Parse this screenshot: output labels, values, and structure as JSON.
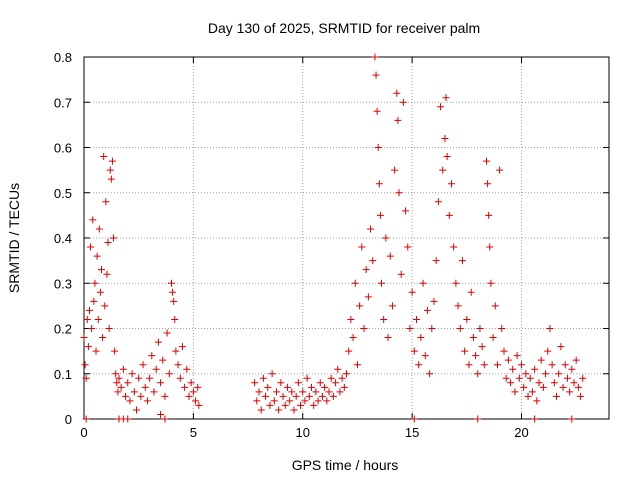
{
  "chart_data": {
    "type": "scatter",
    "title": "Day 130 of 2025, SRMTID for receiver palm",
    "xlabel": "GPS time / hours",
    "ylabel": "SRMTID / TECUs",
    "xlim": [
      0,
      24
    ],
    "ylim": [
      0,
      0.8
    ],
    "xticks": [
      0,
      5,
      10,
      15,
      20
    ],
    "yticks": [
      0,
      0.1,
      0.2,
      0.3,
      0.4,
      0.5,
      0.6,
      0.7,
      0.8
    ],
    "xtick_labels": [
      "0",
      "5",
      "10",
      "15",
      "20"
    ],
    "ytick_labels": [
      "0",
      "0.1",
      "0.2",
      "0.3",
      "0.4",
      "0.5",
      "0.6",
      "0.7",
      "0.8"
    ],
    "grid": true,
    "marker": "+",
    "color": "#e00000",
    "series": [
      {
        "name": "SRMTID",
        "points": [
          [
            0.0,
            0.18
          ],
          [
            0.05,
            0.12
          ],
          [
            0.1,
            0.09
          ],
          [
            0.15,
            0.22
          ],
          [
            0.2,
            0.16
          ],
          [
            0.25,
            0.24
          ],
          [
            0.3,
            0.38
          ],
          [
            0.35,
            0.2
          ],
          [
            0.4,
            0.44
          ],
          [
            0.45,
            0.26
          ],
          [
            0.5,
            0.3
          ],
          [
            0.55,
            0.15
          ],
          [
            0.6,
            0.36
          ],
          [
            0.65,
            0.22
          ],
          [
            0.7,
            0.42
          ],
          [
            0.75,
            0.28
          ],
          [
            0.8,
            0.33
          ],
          [
            0.85,
            0.18
          ],
          [
            0.9,
            0.58
          ],
          [
            0.95,
            0.25
          ],
          [
            1.0,
            0.48
          ],
          [
            1.05,
            0.32
          ],
          [
            1.1,
            0.39
          ],
          [
            1.15,
            0.2
          ],
          [
            1.2,
            0.55
          ],
          [
            1.25,
            0.53
          ],
          [
            1.3,
            0.57
          ],
          [
            1.35,
            0.4
          ],
          [
            1.4,
            0.15
          ],
          [
            1.45,
            0.1
          ],
          [
            1.5,
            0.08
          ],
          [
            1.55,
            0.06
          ],
          [
            1.6,
            0.09
          ],
          [
            1.7,
            0.07
          ],
          [
            1.8,
            0.11
          ],
          [
            1.9,
            0.05
          ],
          [
            2.0,
            0.08
          ],
          [
            2.1,
            0.04
          ],
          [
            2.2,
            0.1
          ],
          [
            2.3,
            0.06
          ],
          [
            1.6,
            0.0
          ],
          [
            1.8,
            0.0
          ],
          [
            2.0,
            0.0
          ],
          [
            2.4,
            0.02
          ],
          [
            2.5,
            0.09
          ],
          [
            2.6,
            0.05
          ],
          [
            2.7,
            0.12
          ],
          [
            2.8,
            0.07
          ],
          [
            2.9,
            0.04
          ],
          [
            3.0,
            0.09
          ],
          [
            3.1,
            0.14
          ],
          [
            3.2,
            0.06
          ],
          [
            3.3,
            0.11
          ],
          [
            3.4,
            0.17
          ],
          [
            3.5,
            0.08
          ],
          [
            3.6,
            0.13
          ],
          [
            3.7,
            0.05
          ],
          [
            3.8,
            0.19
          ],
          [
            3.9,
            0.1
          ],
          [
            4.0,
            0.3
          ],
          [
            4.05,
            0.28
          ],
          [
            4.1,
            0.26
          ],
          [
            4.15,
            0.22
          ],
          [
            4.2,
            0.15
          ],
          [
            4.3,
            0.12
          ],
          [
            4.4,
            0.09
          ],
          [
            4.5,
            0.16
          ],
          [
            4.6,
            0.07
          ],
          [
            4.7,
            0.11
          ],
          [
            4.8,
            0.05
          ],
          [
            4.9,
            0.08
          ],
          [
            5.0,
            0.06
          ],
          [
            5.1,
            0.04
          ],
          [
            5.2,
            0.07
          ],
          [
            5.25,
            0.03
          ],
          [
            3.5,
            0.01
          ],
          [
            3.7,
            0.0
          ],
          [
            7.8,
            0.08
          ],
          [
            7.9,
            0.04
          ],
          [
            8.0,
            0.06
          ],
          [
            8.1,
            0.02
          ],
          [
            8.2,
            0.09
          ],
          [
            8.3,
            0.05
          ],
          [
            8.4,
            0.07
          ],
          [
            8.5,
            0.03
          ],
          [
            8.6,
            0.1
          ],
          [
            8.7,
            0.04
          ],
          [
            8.8,
            0.06
          ],
          [
            8.9,
            0.02
          ],
          [
            9.0,
            0.08
          ],
          [
            9.1,
            0.05
          ],
          [
            9.2,
            0.03
          ],
          [
            9.3,
            0.07
          ],
          [
            9.4,
            0.04
          ],
          [
            9.5,
            0.06
          ],
          [
            9.6,
            0.02
          ],
          [
            9.7,
            0.05
          ],
          [
            9.8,
            0.08
          ],
          [
            9.9,
            0.03
          ],
          [
            10.0,
            0.06
          ],
          [
            10.1,
            0.04
          ],
          [
            10.2,
            0.09
          ],
          [
            10.3,
            0.05
          ],
          [
            10.4,
            0.07
          ],
          [
            10.5,
            0.03
          ],
          [
            10.6,
            0.06
          ],
          [
            10.7,
            0.04
          ],
          [
            10.8,
            0.08
          ],
          [
            10.9,
            0.05
          ],
          [
            11.0,
            0.07
          ],
          [
            11.1,
            0.04
          ],
          [
            11.2,
            0.06
          ],
          [
            11.3,
            0.09
          ],
          [
            11.4,
            0.05
          ],
          [
            11.5,
            0.08
          ],
          [
            11.6,
            0.11
          ],
          [
            11.7,
            0.06
          ],
          [
            11.8,
            0.09
          ],
          [
            11.9,
            0.07
          ],
          [
            12.0,
            0.1
          ],
          [
            12.1,
            0.15
          ],
          [
            12.2,
            0.22
          ],
          [
            12.3,
            0.18
          ],
          [
            12.4,
            0.3
          ],
          [
            12.5,
            0.12
          ],
          [
            12.6,
            0.25
          ],
          [
            12.7,
            0.38
          ],
          [
            12.8,
            0.2
          ],
          [
            12.9,
            0.33
          ],
          [
            13.0,
            0.27
          ],
          [
            13.1,
            0.42
          ],
          [
            13.2,
            0.35
          ],
          [
            13.3,
            0.8
          ],
          [
            13.35,
            0.76
          ],
          [
            13.4,
            0.68
          ],
          [
            13.45,
            0.6
          ],
          [
            13.5,
            0.52
          ],
          [
            13.55,
            0.45
          ],
          [
            13.6,
            0.3
          ],
          [
            13.7,
            0.22
          ],
          [
            13.8,
            0.4
          ],
          [
            13.9,
            0.18
          ],
          [
            14.0,
            0.36
          ],
          [
            14.1,
            0.25
          ],
          [
            14.2,
            0.55
          ],
          [
            14.3,
            0.72
          ],
          [
            14.35,
            0.66
          ],
          [
            14.4,
            0.5
          ],
          [
            14.5,
            0.32
          ],
          [
            14.6,
            0.7
          ],
          [
            14.7,
            0.46
          ],
          [
            14.8,
            0.38
          ],
          [
            14.9,
            0.2
          ],
          [
            15.0,
            0.28
          ],
          [
            15.1,
            0.15
          ],
          [
            15.2,
            0.22
          ],
          [
            15.3,
            0.12
          ],
          [
            15.4,
            0.18
          ],
          [
            15.5,
            0.3
          ],
          [
            15.6,
            0.14
          ],
          [
            15.7,
            0.24
          ],
          [
            15.8,
            0.1
          ],
          [
            15.9,
            0.2
          ],
          [
            16.0,
            0.26
          ],
          [
            16.1,
            0.35
          ],
          [
            16.2,
            0.48
          ],
          [
            16.3,
            0.69
          ],
          [
            16.4,
            0.55
          ],
          [
            16.5,
            0.62
          ],
          [
            16.55,
            0.71
          ],
          [
            16.6,
            0.58
          ],
          [
            16.7,
            0.45
          ],
          [
            16.8,
            0.52
          ],
          [
            16.9,
            0.38
          ],
          [
            17.0,
            0.3
          ],
          [
            17.1,
            0.25
          ],
          [
            17.2,
            0.2
          ],
          [
            17.3,
            0.35
          ],
          [
            17.4,
            0.15
          ],
          [
            17.5,
            0.22
          ],
          [
            17.6,
            0.12
          ],
          [
            17.7,
            0.28
          ],
          [
            17.8,
            0.18
          ],
          [
            17.9,
            0.14
          ],
          [
            18.0,
            0.1
          ],
          [
            18.1,
            0.2
          ],
          [
            18.2,
            0.16
          ],
          [
            18.3,
            0.12
          ],
          [
            18.4,
            0.57
          ],
          [
            18.45,
            0.52
          ],
          [
            18.5,
            0.45
          ],
          [
            18.55,
            0.38
          ],
          [
            18.6,
            0.3
          ],
          [
            18.7,
            0.18
          ],
          [
            18.8,
            0.25
          ],
          [
            18.9,
            0.12
          ],
          [
            19.0,
            0.55
          ],
          [
            19.1,
            0.2
          ],
          [
            19.2,
            0.15
          ],
          [
            19.3,
            0.09
          ],
          [
            19.4,
            0.13
          ],
          [
            19.5,
            0.08
          ],
          [
            19.6,
            0.11
          ],
          [
            19.7,
            0.06
          ],
          [
            19.8,
            0.14
          ],
          [
            19.9,
            0.09
          ],
          [
            20.0,
            0.12
          ],
          [
            20.1,
            0.07
          ],
          [
            20.2,
            0.1
          ],
          [
            20.3,
            0.05
          ],
          [
            20.4,
            0.09
          ],
          [
            20.5,
            0.06
          ],
          [
            20.6,
            0.11
          ],
          [
            20.7,
            0.04
          ],
          [
            20.8,
            0.08
          ],
          [
            20.9,
            0.13
          ],
          [
            21.0,
            0.07
          ],
          [
            21.1,
            0.1
          ],
          [
            21.2,
            0.15
          ],
          [
            21.3,
            0.2
          ],
          [
            21.4,
            0.12
          ],
          [
            21.5,
            0.08
          ],
          [
            21.6,
            0.05
          ],
          [
            21.7,
            0.1
          ],
          [
            21.8,
            0.16
          ],
          [
            21.9,
            0.07
          ],
          [
            22.0,
            0.12
          ],
          [
            22.1,
            0.09
          ],
          [
            22.2,
            0.06
          ],
          [
            22.3,
            0.11
          ],
          [
            22.4,
            0.08
          ],
          [
            22.5,
            0.13
          ],
          [
            22.6,
            0.07
          ],
          [
            22.7,
            0.05
          ],
          [
            22.8,
            0.09
          ],
          [
            20.6,
            0.0
          ],
          [
            22.3,
            0.0
          ],
          [
            18.0,
            0.0
          ],
          [
            0.1,
            0.0
          ],
          [
            15.1,
            0.0
          ]
        ]
      }
    ]
  }
}
